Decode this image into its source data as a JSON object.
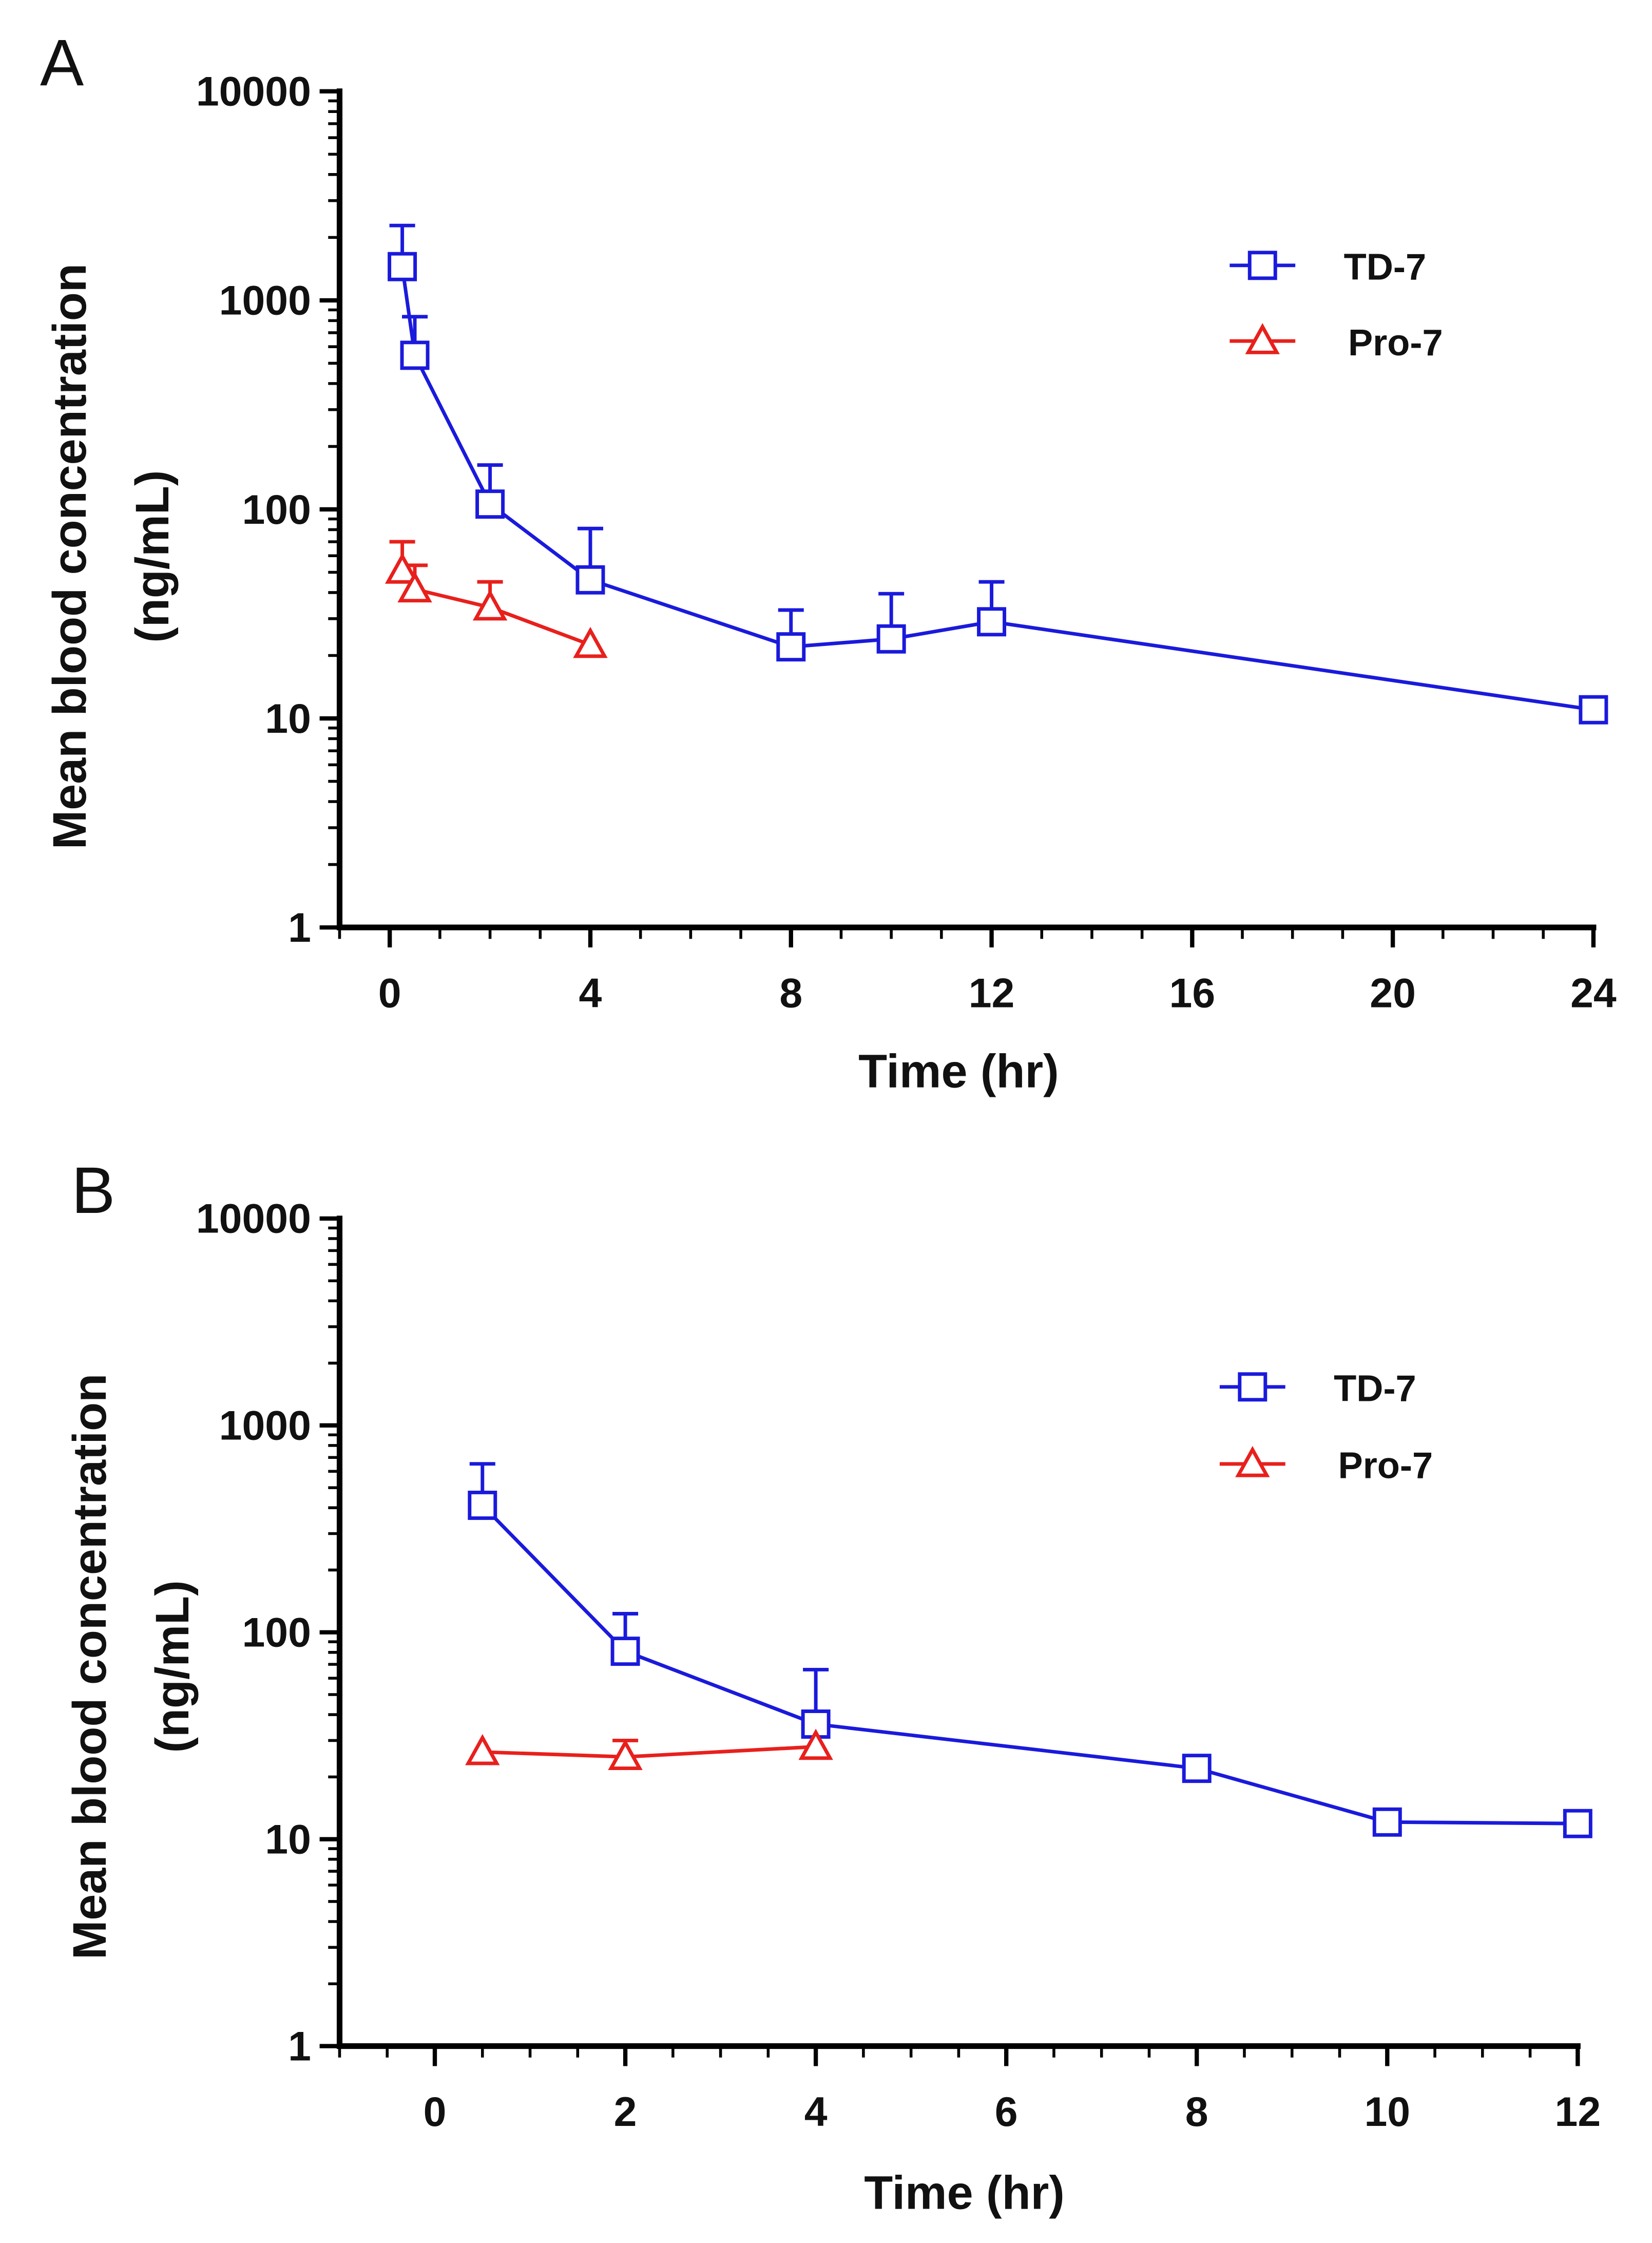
{
  "chart_data": [
    {
      "panel_label": "A",
      "type": "line",
      "xlabel": "Time (hr)",
      "ylabel_line1": "Mean blood concentration",
      "ylabel_line2": "(ng/mL)",
      "yscale": "log",
      "ylim": [
        1,
        10000
      ],
      "xlim": [
        -1,
        24
      ],
      "xticks": [
        0,
        4,
        8,
        12,
        16,
        20,
        24
      ],
      "yticks": [
        1,
        10,
        100,
        1000,
        10000
      ],
      "legend_position": "top-right",
      "series": [
        {
          "name": "TD-7",
          "color": "#1a1adc",
          "marker": "square",
          "x": [
            0.25,
            0.5,
            2,
            4,
            8,
            10,
            12,
            24
          ],
          "y": [
            1450,
            546,
            106,
            46,
            22,
            24,
            29,
            11
          ],
          "err_upper": [
            2280,
            835,
            163,
            81,
            33,
            39.5,
            45,
            null
          ]
        },
        {
          "name": "Pro-7",
          "color": "#e8201c",
          "marker": "triangle",
          "x": [
            0.25,
            0.5,
            2,
            4
          ],
          "y": [
            51,
            41.5,
            34,
            22.5
          ],
          "err_upper": [
            70,
            54,
            45,
            null
          ]
        }
      ]
    },
    {
      "panel_label": "B",
      "type": "line",
      "xlabel": "Time (hr)",
      "ylabel_line1": "Mean blood concentration",
      "ylabel_line2": "(ng/mL)",
      "yscale": "log",
      "ylim": [
        1,
        10000
      ],
      "xlim": [
        -1,
        12
      ],
      "xticks": [
        0,
        2,
        4,
        6,
        8,
        10,
        12
      ],
      "yticks": [
        1,
        10,
        100,
        1000,
        10000
      ],
      "legend_position": "top-right",
      "series": [
        {
          "name": "TD-7",
          "color": "#1a1adc",
          "marker": "square",
          "x": [
            0.5,
            2,
            4,
            8,
            10,
            12
          ],
          "y": [
            411,
            81,
            36,
            22,
            12.1,
            11.9
          ],
          "err_upper": [
            652,
            123,
            66,
            null,
            null,
            null
          ]
        },
        {
          "name": "Pro-7",
          "color": "#e8201c",
          "marker": "triangle",
          "x": [
            0.5,
            2,
            4
          ],
          "y": [
            26.4,
            25,
            28
          ],
          "err_upper": [
            null,
            30,
            null
          ]
        }
      ]
    }
  ]
}
